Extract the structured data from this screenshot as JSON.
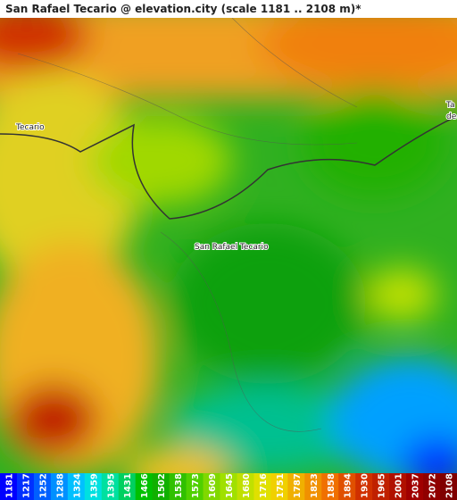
{
  "title": "San Rafael Tecario @ elevation.city (scale 1181 .. 2108 m)*",
  "place_labels": [
    "Tecario",
    "San Rafael Tecario",
    "Ta",
    "de"
  ],
  "legend": {
    "values": [
      1181,
      1217,
      1252,
      1288,
      1324,
      1359,
      1395,
      1431,
      1466,
      1502,
      1538,
      1573,
      1609,
      1645,
      1680,
      1716,
      1751,
      1787,
      1823,
      1858,
      1894,
      1930,
      1965,
      2001,
      2037,
      2072,
      2108
    ],
    "colors": [
      "#0000ff",
      "#0030ff",
      "#0060ff",
      "#0090ff",
      "#00c0ff",
      "#00e0e0",
      "#00e0a0",
      "#00d060",
      "#00c000",
      "#10b000",
      "#30c000",
      "#50d000",
      "#80d800",
      "#a0e000",
      "#c0e000",
      "#e0e000",
      "#f0d000",
      "#f0b000",
      "#f09000",
      "#f07000",
      "#e05000",
      "#d03000",
      "#c02000",
      "#b01000",
      "#a00000",
      "#900000",
      "#800000"
    ]
  }
}
